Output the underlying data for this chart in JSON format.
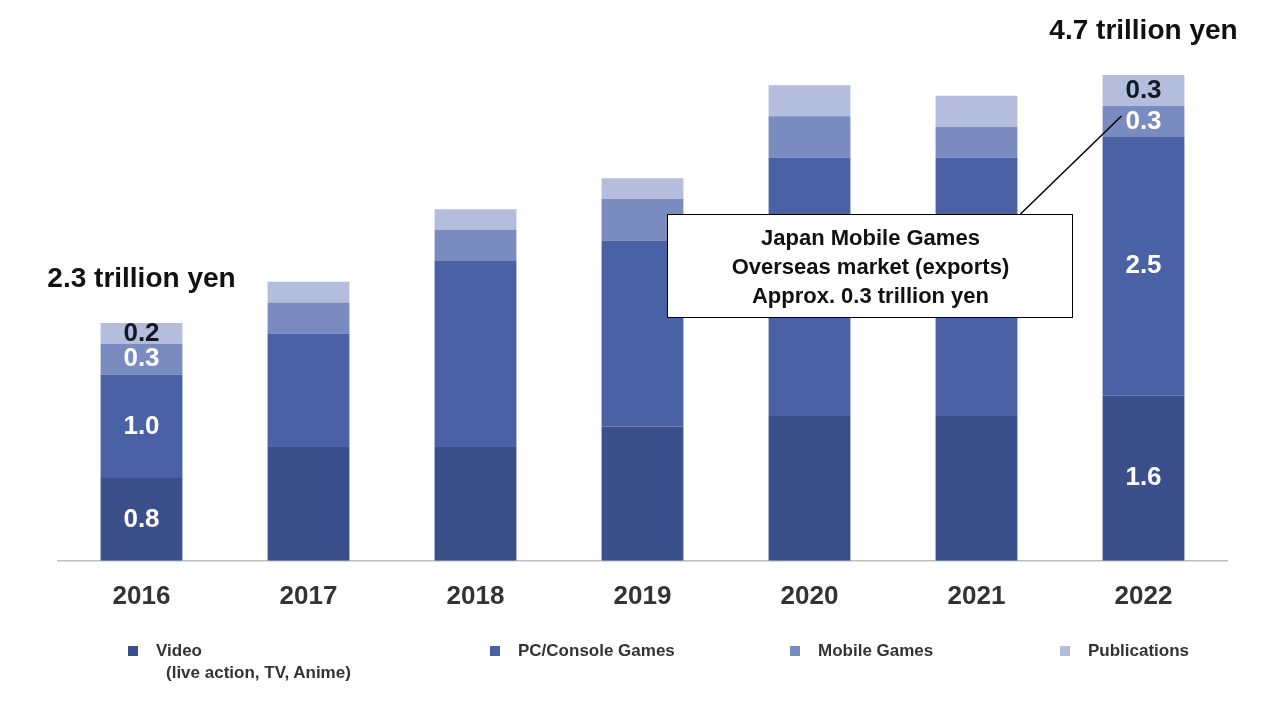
{
  "chart_data": {
    "type": "bar",
    "stacked": true,
    "categories": [
      "2016",
      "2017",
      "2018",
      "2019",
      "2020",
      "2021",
      "2022"
    ],
    "series": [
      {
        "name": "Video\n(live action, TV, Anime)",
        "color": "#3b4f8a",
        "values": [
          0.8,
          1.1,
          1.1,
          1.3,
          1.4,
          1.4,
          1.6
        ],
        "value_labels": [
          "0.8",
          null,
          null,
          null,
          null,
          null,
          "1.6"
        ]
      },
      {
        "name": "PC/Console Games",
        "color": "#4a62a5",
        "values": [
          1.0,
          1.1,
          1.8,
          1.8,
          2.5,
          2.5,
          2.5
        ],
        "value_labels": [
          "1.0",
          null,
          null,
          null,
          null,
          null,
          "2.5"
        ]
      },
      {
        "name": "Mobile Games",
        "color": "#7a8bbf",
        "values": [
          0.3,
          0.3,
          0.3,
          0.4,
          0.4,
          0.3,
          0.3
        ],
        "value_labels": [
          "0.3",
          null,
          null,
          null,
          null,
          null,
          "0.3"
        ]
      },
      {
        "name": "Publications",
        "color": "#b5bddc",
        "values": [
          0.2,
          0.2,
          0.2,
          0.2,
          0.3,
          0.3,
          0.3
        ],
        "value_labels": [
          "0.2",
          null,
          null,
          null,
          null,
          null,
          "0.3"
        ]
      }
    ],
    "totals": [
      "2.3 trillion yen",
      null,
      null,
      null,
      null,
      null,
      "4.7 trillion yen"
    ],
    "annotations": [
      "Japan Mobile Games\nOverseas market (exports)\nApprox. 0.3 trillion yen"
    ],
    "legend": "bottom",
    "grid": false,
    "tick_labels": "x"
  }
}
